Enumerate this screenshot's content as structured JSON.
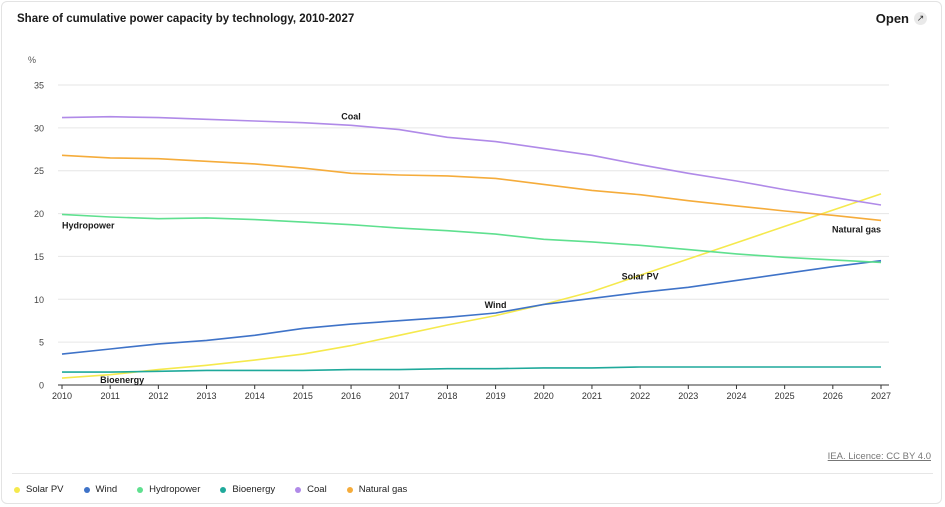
{
  "header": {
    "title": "Share of cumulative power capacity by technology, 2010-2027",
    "open_label": "Open"
  },
  "footer": {
    "credit": "IEA. Licence: CC BY 4.0"
  },
  "chart_data": {
    "type": "line",
    "title": "Share of cumulative power capacity by technology, 2010-2027",
    "ylabel": "%",
    "xlabel": "",
    "ylim": [
      0,
      35
    ],
    "yticks": [
      0,
      5,
      10,
      15,
      20,
      25,
      30,
      35
    ],
    "grid": true,
    "legend": "bottom",
    "x": [
      2010,
      2011,
      2012,
      2013,
      2014,
      2015,
      2016,
      2017,
      2018,
      2019,
      2020,
      2021,
      2022,
      2023,
      2024,
      2025,
      2026,
      2027
    ],
    "series": [
      {
        "name": "Solar PV",
        "color": "#f5e94d",
        "label": "Solar PV",
        "values": [
          0.8,
          1.2,
          1.8,
          2.3,
          2.9,
          3.6,
          4.6,
          5.8,
          7.0,
          8.1,
          9.4,
          10.9,
          12.8,
          14.7,
          16.6,
          18.5,
          20.4,
          22.3
        ]
      },
      {
        "name": "Wind",
        "color": "#3f73c8",
        "label": "Wind",
        "values": [
          3.6,
          4.2,
          4.8,
          5.2,
          5.8,
          6.6,
          7.1,
          7.5,
          7.9,
          8.4,
          9.4,
          10.1,
          10.8,
          11.4,
          12.2,
          13.0,
          13.8,
          14.5
        ]
      },
      {
        "name": "Hydropower",
        "color": "#5fe08f",
        "label": "Hydropower",
        "values": [
          19.9,
          19.6,
          19.4,
          19.5,
          19.3,
          19.0,
          18.7,
          18.3,
          18.0,
          17.6,
          17.0,
          16.7,
          16.3,
          15.8,
          15.3,
          14.9,
          14.6,
          14.3
        ]
      },
      {
        "name": "Bioenergy",
        "color": "#1fa99b",
        "label": "Bioenergy",
        "values": [
          1.5,
          1.5,
          1.6,
          1.7,
          1.7,
          1.7,
          1.8,
          1.8,
          1.9,
          1.9,
          2.0,
          2.0,
          2.1,
          2.1,
          2.1,
          2.1,
          2.1,
          2.1
        ]
      },
      {
        "name": "Coal",
        "color": "#b08ae8",
        "label": "Coal",
        "values": [
          31.2,
          31.3,
          31.2,
          31.0,
          30.8,
          30.6,
          30.3,
          29.8,
          28.9,
          28.4,
          27.6,
          26.8,
          25.7,
          24.7,
          23.8,
          22.8,
          21.9,
          21.0
        ]
      },
      {
        "name": "Natural gas",
        "color": "#f5ac3b",
        "label": "Natural gas",
        "values": [
          26.8,
          26.5,
          26.4,
          26.1,
          25.8,
          25.3,
          24.7,
          24.5,
          24.4,
          24.1,
          23.4,
          22.7,
          22.2,
          21.5,
          20.9,
          20.3,
          19.8,
          19.2
        ]
      }
    ],
    "annotations": [
      {
        "text": "Coal",
        "series": "Coal"
      },
      {
        "text": "Hydropower",
        "series": "Hydropower"
      },
      {
        "text": "Natural gas",
        "series": "Natural gas"
      },
      {
        "text": "Solar PV",
        "series": "Solar PV"
      },
      {
        "text": "Wind",
        "series": "Wind"
      },
      {
        "text": "Bioenergy",
        "series": "Bioenergy"
      }
    ]
  }
}
